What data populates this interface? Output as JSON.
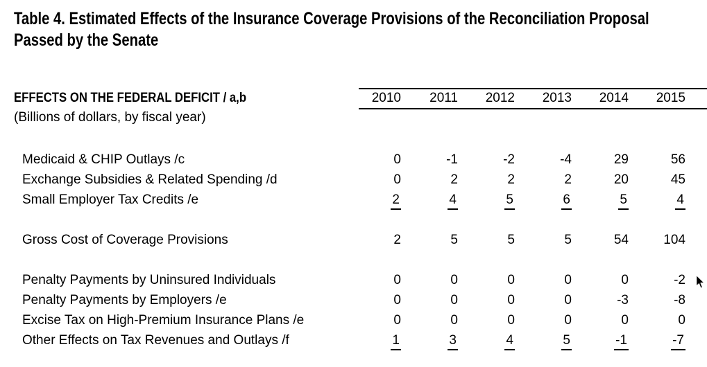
{
  "title": {
    "line1": "Table 4. Estimated Effects of the Insurance Coverage Provisions of the Reconciliation Proposal",
    "line2": "Passed by the Senate"
  },
  "table": {
    "section_header": "EFFECTS ON THE FEDERAL DEFICIT / a,b",
    "section_subtitle": "(Billions of dollars, by fiscal year)",
    "years": [
      "2010",
      "2011",
      "2012",
      "2013",
      "2014",
      "2015"
    ],
    "rows": [
      {
        "label": "Medicaid & CHIP Outlays /c",
        "values": [
          "0",
          "-1",
          "-2",
          "-4",
          "29",
          "56"
        ],
        "underline": false,
        "gap_before": false
      },
      {
        "label": "Exchange Subsidies & Related Spending /d",
        "values": [
          "0",
          "2",
          "2",
          "2",
          "20",
          "45"
        ],
        "underline": false,
        "gap_before": false
      },
      {
        "label": "Small Employer Tax Credits /e",
        "values": [
          "2",
          "4",
          "5",
          "6",
          "5",
          "4"
        ],
        "underline": true,
        "gap_before": false
      },
      {
        "label": "Gross Cost of Coverage Provisions",
        "values": [
          "2",
          "5",
          "5",
          "5",
          "54",
          "104"
        ],
        "underline": false,
        "gap_before": true
      },
      {
        "label": "Penalty Payments by Uninsured Individuals",
        "values": [
          "0",
          "0",
          "0",
          "0",
          "0",
          "-2"
        ],
        "underline": false,
        "gap_before": true
      },
      {
        "label": "Penalty Payments by Employers /e",
        "values": [
          "0",
          "0",
          "0",
          "0",
          "-3",
          "-8"
        ],
        "underline": false,
        "gap_before": false
      },
      {
        "label": "Excise Tax on High-Premium Insurance Plans /e",
        "values": [
          "0",
          "0",
          "0",
          "0",
          "0",
          "0"
        ],
        "underline": false,
        "gap_before": false
      },
      {
        "label": "Other Effects on Tax Revenues and Outlays /f",
        "values": [
          "1",
          "3",
          "4",
          "5",
          "-1",
          "-7"
        ],
        "underline": true,
        "gap_before": false
      }
    ]
  },
  "cursor": {
    "name": "arrow-cursor"
  },
  "colors": {
    "text": "#000000",
    "background": "#ffffff",
    "rule": "#000000"
  }
}
